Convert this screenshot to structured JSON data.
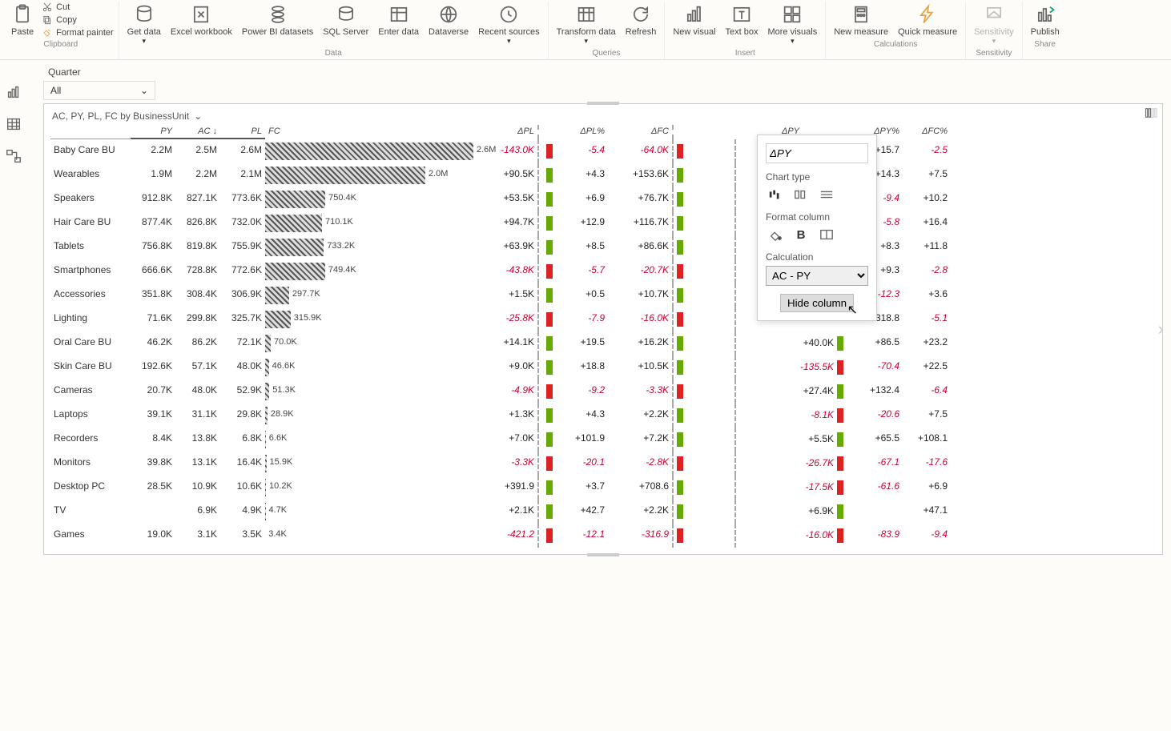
{
  "ribbon": {
    "clipboard": {
      "group": "Clipboard",
      "paste": "Paste",
      "cut": "Cut",
      "copy": "Copy",
      "format_painter": "Format painter"
    },
    "data": {
      "group": "Data",
      "get_data": "Get data",
      "excel": "Excel workbook",
      "powerbi": "Power BI datasets",
      "sql": "SQL Server",
      "enter": "Enter data",
      "dataverse": "Dataverse",
      "recent": "Recent sources"
    },
    "queries": {
      "group": "Queries",
      "transform": "Transform data",
      "refresh": "Refresh"
    },
    "insert": {
      "group": "Insert",
      "new_visual": "New visual",
      "text_box": "Text box",
      "more": "More visuals"
    },
    "calculations": {
      "group": "Calculations",
      "new_measure": "New measure",
      "quick_measure": "Quick measure"
    },
    "sensitivity": {
      "group": "Sensitivity",
      "label": "Sensitivity"
    },
    "share": {
      "group": "Share",
      "publish": "Publish"
    }
  },
  "filter": {
    "label": "Quarter",
    "value": "All"
  },
  "viz": {
    "title": "AC, PY, PL, FC by BusinessUnit",
    "columns": [
      "PY",
      "AC ↓",
      "PL",
      "FC",
      "ΔPL",
      "",
      "ΔPL%",
      "ΔFC",
      "",
      "",
      "ΔPY",
      "ΔPY%",
      "ΔFC%"
    ],
    "max_fc_value": 2600000,
    "rows": [
      {
        "name": "Baby Care BU",
        "py": "2.2M",
        "ac": "2.5M",
        "pl": "2.6M",
        "fc": "2.6M",
        "fc_val": 2600000,
        "dpl": "-143.0K",
        "dpl_sign": "neg",
        "dpl_mark": "red",
        "dplp": "-5.4",
        "dplp_sign": "neg",
        "dfc": "-64.0K",
        "dfc_sign": "neg",
        "dfc_mark": "red",
        "dpy": "",
        "dpy_sign": "",
        "dpy_mark": "",
        "dpyp": "+15.7",
        "dpyp_sign": "pos",
        "dfcp": "-2.5",
        "dfcp_sign": "neg"
      },
      {
        "name": "Wearables",
        "py": "1.9M",
        "ac": "2.2M",
        "pl": "2.1M",
        "fc": "2.0M",
        "fc_val": 2000000,
        "dpl": "+90.5K",
        "dpl_sign": "pos",
        "dpl_mark": "green",
        "dplp": "+4.3",
        "dplp_sign": "pos",
        "dfc": "+153.6K",
        "dfc_sign": "pos",
        "dfc_mark": "green",
        "dpy": "",
        "dpy_sign": "",
        "dpy_mark": "",
        "dpyp": "+14.3",
        "dpyp_sign": "pos",
        "dfcp": "+7.5",
        "dfcp_sign": "pos"
      },
      {
        "name": "Speakers",
        "py": "912.8K",
        "ac": "827.1K",
        "pl": "773.6K",
        "fc": "750.4K",
        "fc_val": 750400,
        "dpl": "+53.5K",
        "dpl_sign": "pos",
        "dpl_mark": "green",
        "dplp": "+6.9",
        "dplp_sign": "pos",
        "dfc": "+76.7K",
        "dfc_sign": "pos",
        "dfc_mark": "green",
        "dpy": "",
        "dpy_sign": "",
        "dpy_mark": "",
        "dpyp": "-9.4",
        "dpyp_sign": "neg",
        "dfcp": "+10.2",
        "dfcp_sign": "pos"
      },
      {
        "name": "Hair Care BU",
        "py": "877.4K",
        "ac": "826.8K",
        "pl": "732.0K",
        "fc": "710.1K",
        "fc_val": 710100,
        "dpl": "+94.7K",
        "dpl_sign": "pos",
        "dpl_mark": "green",
        "dplp": "+12.9",
        "dplp_sign": "pos",
        "dfc": "+116.7K",
        "dfc_sign": "pos",
        "dfc_mark": "green",
        "dpy": "",
        "dpy_sign": "",
        "dpy_mark": "",
        "dpyp": "-5.8",
        "dpyp_sign": "neg",
        "dfcp": "+16.4",
        "dfcp_sign": "pos"
      },
      {
        "name": "Tablets",
        "py": "756.8K",
        "ac": "819.8K",
        "pl": "755.9K",
        "fc": "733.2K",
        "fc_val": 733200,
        "dpl": "+63.9K",
        "dpl_sign": "pos",
        "dpl_mark": "green",
        "dplp": "+8.5",
        "dplp_sign": "pos",
        "dfc": "+86.6K",
        "dfc_sign": "pos",
        "dfc_mark": "green",
        "dpy": "",
        "dpy_sign": "",
        "dpy_mark": "",
        "dpyp": "+8.3",
        "dpyp_sign": "pos",
        "dfcp": "+11.8",
        "dfcp_sign": "pos"
      },
      {
        "name": "Smartphones",
        "py": "666.6K",
        "ac": "728.8K",
        "pl": "772.6K",
        "fc": "749.4K",
        "fc_val": 749400,
        "dpl": "-43.8K",
        "dpl_sign": "neg",
        "dpl_mark": "red",
        "dplp": "-5.7",
        "dplp_sign": "neg",
        "dfc": "-20.7K",
        "dfc_sign": "neg",
        "dfc_mark": "red",
        "dpy": "",
        "dpy_sign": "",
        "dpy_mark": "",
        "dpyp": "+9.3",
        "dpyp_sign": "pos",
        "dfcp": "-2.8",
        "dfcp_sign": "neg"
      },
      {
        "name": "Accessories",
        "py": "351.8K",
        "ac": "308.4K",
        "pl": "306.9K",
        "fc": "297.7K",
        "fc_val": 297700,
        "dpl": "+1.5K",
        "dpl_sign": "pos",
        "dpl_mark": "green",
        "dplp": "+0.5",
        "dplp_sign": "pos",
        "dfc": "+10.7K",
        "dfc_sign": "pos",
        "dfc_mark": "green",
        "dpy": "",
        "dpy_sign": "",
        "dpy_mark": "",
        "dpyp": "-12.3",
        "dpyp_sign": "neg",
        "dfcp": "+3.6",
        "dfcp_sign": "pos"
      },
      {
        "name": "Lighting",
        "py": "71.6K",
        "ac": "299.8K",
        "pl": "325.7K",
        "fc": "315.9K",
        "fc_val": 315900,
        "dpl": "-25.8K",
        "dpl_sign": "neg",
        "dpl_mark": "red",
        "dplp": "-7.9",
        "dplp_sign": "neg",
        "dfc": "-16.0K",
        "dfc_sign": "neg",
        "dfc_mark": "red",
        "dpy": "",
        "dpy_sign": "",
        "dpy_mark": "",
        "dpyp": "+318.8",
        "dpyp_sign": "pos",
        "dfcp": "-5.1",
        "dfcp_sign": "neg"
      },
      {
        "name": "Oral Care BU",
        "py": "46.2K",
        "ac": "86.2K",
        "pl": "72.1K",
        "fc": "70.0K",
        "fc_val": 70000,
        "dpl": "+14.1K",
        "dpl_sign": "pos",
        "dpl_mark": "green",
        "dplp": "+19.5",
        "dplp_sign": "pos",
        "dfc": "+16.2K",
        "dfc_sign": "pos",
        "dfc_mark": "green",
        "dpy": "+40.0K",
        "dpy_sign": "pos",
        "dpy_mark": "green",
        "dpyp": "+86.5",
        "dpyp_sign": "pos",
        "dfcp": "+23.2",
        "dfcp_sign": "pos"
      },
      {
        "name": "Skin Care BU",
        "py": "192.6K",
        "ac": "57.1K",
        "pl": "48.0K",
        "fc": "46.6K",
        "fc_val": 46600,
        "dpl": "+9.0K",
        "dpl_sign": "pos",
        "dpl_mark": "green",
        "dplp": "+18.8",
        "dplp_sign": "pos",
        "dfc": "+10.5K",
        "dfc_sign": "pos",
        "dfc_mark": "green",
        "dpy": "-135.5K",
        "dpy_sign": "neg",
        "dpy_mark": "red",
        "dpyp": "-70.4",
        "dpyp_sign": "neg",
        "dfcp": "+22.5",
        "dfcp_sign": "pos"
      },
      {
        "name": "Cameras",
        "py": "20.7K",
        "ac": "48.0K",
        "pl": "52.9K",
        "fc": "51.3K",
        "fc_val": 51300,
        "dpl": "-4.9K",
        "dpl_sign": "neg",
        "dpl_mark": "red",
        "dplp": "-9.2",
        "dplp_sign": "neg",
        "dfc": "-3.3K",
        "dfc_sign": "neg",
        "dfc_mark": "red",
        "dpy": "+27.4K",
        "dpy_sign": "pos",
        "dpy_mark": "green",
        "dpyp": "+132.4",
        "dpyp_sign": "pos",
        "dfcp": "-6.4",
        "dfcp_sign": "neg"
      },
      {
        "name": "Laptops",
        "py": "39.1K",
        "ac": "31.1K",
        "pl": "29.8K",
        "fc": "28.9K",
        "fc_val": 28900,
        "dpl": "+1.3K",
        "dpl_sign": "pos",
        "dpl_mark": "green",
        "dplp": "+4.3",
        "dplp_sign": "pos",
        "dfc": "+2.2K",
        "dfc_sign": "pos",
        "dfc_mark": "green",
        "dpy": "-8.1K",
        "dpy_sign": "neg",
        "dpy_mark": "red",
        "dpyp": "-20.6",
        "dpyp_sign": "neg",
        "dfcp": "+7.5",
        "dfcp_sign": "pos"
      },
      {
        "name": "Recorders",
        "py": "8.4K",
        "ac": "13.8K",
        "pl": "6.8K",
        "fc": "6.6K",
        "fc_val": 6600,
        "dpl": "+7.0K",
        "dpl_sign": "pos",
        "dpl_mark": "green",
        "dplp": "+101.9",
        "dplp_sign": "pos",
        "dfc": "+7.2K",
        "dfc_sign": "pos",
        "dfc_mark": "green",
        "dpy": "+5.5K",
        "dpy_sign": "pos",
        "dpy_mark": "green",
        "dpyp": "+65.5",
        "dpyp_sign": "pos",
        "dfcp": "+108.1",
        "dfcp_sign": "pos"
      },
      {
        "name": "Monitors",
        "py": "39.8K",
        "ac": "13.1K",
        "pl": "16.4K",
        "fc": "15.9K",
        "fc_val": 15900,
        "dpl": "-3.3K",
        "dpl_sign": "neg",
        "dpl_mark": "red",
        "dplp": "-20.1",
        "dplp_sign": "neg",
        "dfc": "-2.8K",
        "dfc_sign": "neg",
        "dfc_mark": "red",
        "dpy": "-26.7K",
        "dpy_sign": "neg",
        "dpy_mark": "red",
        "dpyp": "-67.1",
        "dpyp_sign": "neg",
        "dfcp": "-17.6",
        "dfcp_sign": "neg"
      },
      {
        "name": "Desktop PC",
        "py": "28.5K",
        "ac": "10.9K",
        "pl": "10.6K",
        "fc": "10.2K",
        "fc_val": 10200,
        "dpl": "+391.9",
        "dpl_sign": "pos",
        "dpl_mark": "green",
        "dplp": "+3.7",
        "dplp_sign": "pos",
        "dfc": "+708.6",
        "dfc_sign": "pos",
        "dfc_mark": "green",
        "dpy": "-17.5K",
        "dpy_sign": "neg",
        "dpy_mark": "red",
        "dpyp": "-61.6",
        "dpyp_sign": "neg",
        "dfcp": "+6.9",
        "dfcp_sign": "pos"
      },
      {
        "name": "TV",
        "py": "",
        "ac": "6.9K",
        "pl": "4.9K",
        "fc": "4.7K",
        "fc_val": 4700,
        "dpl": "+2.1K",
        "dpl_sign": "pos",
        "dpl_mark": "green",
        "dplp": "+42.7",
        "dplp_sign": "pos",
        "dfc": "+2.2K",
        "dfc_sign": "pos",
        "dfc_mark": "green",
        "dpy": "+6.9K",
        "dpy_sign": "pos",
        "dpy_mark": "green",
        "dpyp": "",
        "dpyp_sign": "",
        "dfcp": "+47.1",
        "dfcp_sign": "pos"
      },
      {
        "name": "Games",
        "py": "19.0K",
        "ac": "3.1K",
        "pl": "3.5K",
        "fc": "3.4K",
        "fc_val": 3400,
        "dpl": "-421.2",
        "dpl_sign": "neg",
        "dpl_mark": "red",
        "dplp": "-12.1",
        "dplp_sign": "neg",
        "dfc": "-316.9",
        "dfc_sign": "neg",
        "dfc_mark": "red",
        "dpy": "-16.0K",
        "dpy_sign": "neg",
        "dpy_mark": "red",
        "dpyp": "-83.9",
        "dpyp_sign": "neg",
        "dfcp": "-9.4",
        "dfcp_sign": "neg"
      }
    ]
  },
  "popup": {
    "field": "ΔPY",
    "chart_type_label": "Chart type",
    "format_label": "Format column",
    "calc_label": "Calculation",
    "calc_value": "AC - PY",
    "hide_btn": "Hide column"
  }
}
